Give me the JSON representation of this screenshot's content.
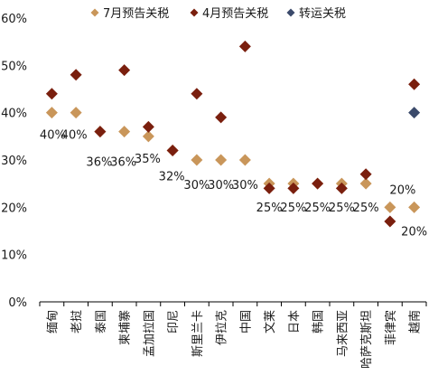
{
  "chart_data": {
    "type": "scatter",
    "categories": [
      "缅甸",
      "老挝",
      "泰国",
      "柬埔寨",
      "孟加拉国",
      "印尼",
      "斯里兰卡",
      "伊拉克",
      "中国",
      "文莱",
      "日本",
      "韩国",
      "马来西亚",
      "哈萨克斯坦",
      "菲律宾",
      "越南"
    ],
    "ylim": [
      0,
      60
    ],
    "yticks": [
      0,
      10,
      20,
      30,
      40,
      50,
      60
    ],
    "ytick_labels": [
      "0%",
      "10%",
      "20%",
      "30%",
      "40%",
      "50%",
      "60%"
    ],
    "grid": false,
    "legend_position": "top",
    "series": [
      {
        "name": "7月预告关税",
        "color": "#C9965A",
        "values": [
          40,
          40,
          36,
          36,
          35,
          32,
          30,
          30,
          30,
          25,
          25,
          25,
          25,
          25,
          20,
          20
        ]
      },
      {
        "name": "4月预告关税",
        "color": "#7A1F0E",
        "values": [
          44,
          48,
          36,
          49,
          37,
          32,
          44,
          39,
          54,
          24,
          24,
          25,
          24,
          27,
          17,
          46
        ]
      },
      {
        "name": "转运关税",
        "color": "#3B4A6B",
        "values": [
          null,
          null,
          null,
          null,
          null,
          null,
          null,
          null,
          null,
          null,
          null,
          null,
          null,
          null,
          null,
          40
        ]
      }
    ],
    "data_labels": [
      "40%",
      "40%",
      "36%",
      "36%",
      "35%",
      "32%",
      "30%",
      "30%",
      "30%",
      "25%",
      "25%",
      "25%",
      "25%",
      "25%",
      "20%",
      "20%"
    ]
  }
}
